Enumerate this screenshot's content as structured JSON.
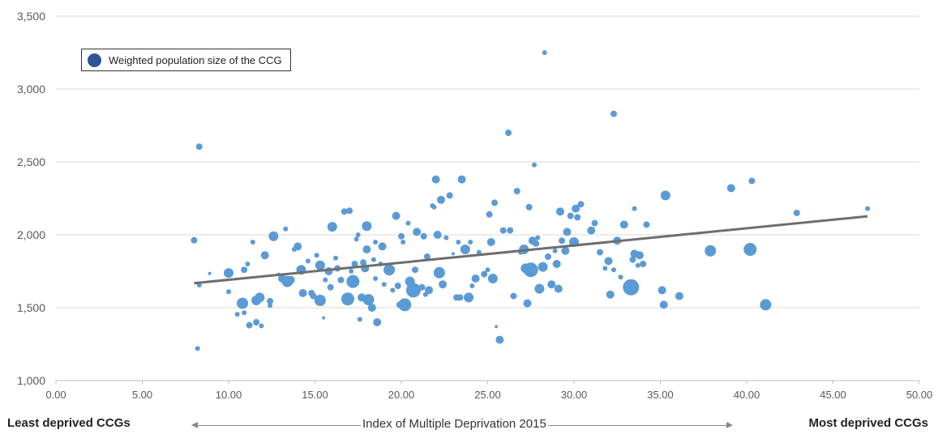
{
  "chart_data": {
    "type": "scatter",
    "title": "",
    "xlabel": "Index of Multiple Deprivation 2015",
    "ylabel": "",
    "xlim": [
      0,
      50
    ],
    "ylim": [
      1000,
      3500
    ],
    "x_ticks": [
      "0.00",
      "5.00",
      "10.00",
      "15.00",
      "20.00",
      "25.00",
      "30.00",
      "35.00",
      "40.00",
      "45.00",
      "50.00"
    ],
    "y_ticks": [
      "1,000",
      "1,500",
      "2,000",
      "2,500",
      "3,000",
      "3,500"
    ],
    "grid": "horizontal",
    "legend": {
      "label": "Weighted population size of the CCG",
      "placement": "top-left"
    },
    "left_annotation": "Least deprived CCGs",
    "right_annotation": "Most deprived CCGs",
    "colors": {
      "points": "#5b9bd5",
      "legend_marker": "#2f5597",
      "trend": "#6e6e6e",
      "grid": "#d9d9d9"
    },
    "trendline": {
      "x": [
        8.0,
        47.0
      ],
      "y": [
        1668,
        2127
      ]
    },
    "series": [
      {
        "points": [
          [
            8.0,
            1963,
            4
          ],
          [
            8.3,
            2605,
            4
          ],
          [
            8.2,
            1220,
            3
          ],
          [
            8.3,
            1655,
            3
          ],
          [
            8.9,
            1735,
            2
          ],
          [
            10.0,
            1738,
            6
          ],
          [
            10.0,
            1610,
            3
          ],
          [
            10.5,
            1455,
            3
          ],
          [
            10.8,
            1530,
            7
          ],
          [
            10.9,
            1465,
            3
          ],
          [
            11.1,
            1800,
            3
          ],
          [
            10.9,
            1760,
            4
          ],
          [
            11.2,
            1380,
            4
          ],
          [
            11.4,
            1950,
            3
          ],
          [
            11.6,
            1400,
            4
          ],
          [
            11.6,
            1550,
            6
          ],
          [
            11.8,
            1570,
            6
          ],
          [
            11.9,
            1375,
            3
          ],
          [
            12.1,
            1860,
            5
          ],
          [
            12.4,
            1515,
            3
          ],
          [
            12.4,
            1545,
            4
          ],
          [
            12.6,
            1990,
            6
          ],
          [
            12.9,
            1730,
            2
          ],
          [
            13.1,
            1700,
            5
          ],
          [
            13.3,
            2040,
            3
          ],
          [
            13.4,
            1680,
            7
          ],
          [
            13.6,
            1690,
            5
          ],
          [
            13.8,
            1900,
            3
          ],
          [
            14.0,
            1920,
            5
          ],
          [
            14.3,
            1600,
            5
          ],
          [
            14.2,
            1760,
            6
          ],
          [
            14.6,
            1820,
            3
          ],
          [
            14.8,
            1600,
            4
          ],
          [
            14.9,
            1580,
            4
          ],
          [
            15.1,
            1860,
            3
          ],
          [
            15.3,
            1790,
            6
          ],
          [
            15.3,
            1550,
            7
          ],
          [
            15.5,
            1430,
            2
          ],
          [
            15.6,
            1690,
            3
          ],
          [
            15.8,
            1750,
            5
          ],
          [
            15.9,
            1640,
            4
          ],
          [
            16.0,
            2055,
            6
          ],
          [
            16.2,
            1840,
            3
          ],
          [
            16.3,
            1770,
            4
          ],
          [
            16.5,
            1690,
            4
          ],
          [
            16.7,
            2160,
            4
          ],
          [
            16.9,
            1560,
            8
          ],
          [
            17.0,
            2165,
            4
          ],
          [
            17.1,
            1750,
            3
          ],
          [
            17.2,
            1680,
            8
          ],
          [
            17.3,
            1800,
            4
          ],
          [
            17.4,
            1970,
            3
          ],
          [
            17.5,
            2000,
            3
          ],
          [
            17.6,
            1420,
            3
          ],
          [
            17.7,
            1570,
            5
          ],
          [
            17.8,
            1810,
            4
          ],
          [
            17.9,
            1770,
            5
          ],
          [
            18.0,
            2060,
            6
          ],
          [
            18.0,
            1900,
            5
          ],
          [
            18.1,
            1555,
            7
          ],
          [
            18.3,
            1500,
            5
          ],
          [
            18.4,
            1830,
            3
          ],
          [
            18.5,
            1700,
            3
          ],
          [
            18.5,
            1950,
            3
          ],
          [
            18.6,
            1400,
            5
          ],
          [
            18.8,
            1800,
            3
          ],
          [
            18.9,
            1920,
            5
          ],
          [
            19.0,
            1660,
            3
          ],
          [
            19.3,
            1760,
            7
          ],
          [
            19.5,
            1620,
            3
          ],
          [
            19.7,
            2130,
            5
          ],
          [
            19.8,
            1650,
            4
          ],
          [
            19.9,
            1520,
            4
          ],
          [
            20.0,
            1990,
            4
          ],
          [
            20.1,
            1950,
            3
          ],
          [
            20.2,
            1520,
            8
          ],
          [
            20.4,
            2080,
            3
          ],
          [
            20.5,
            1680,
            6
          ],
          [
            20.7,
            1620,
            9
          ],
          [
            20.8,
            1760,
            4
          ],
          [
            20.9,
            2020,
            5
          ],
          [
            21.2,
            1640,
            4
          ],
          [
            21.3,
            1990,
            4
          ],
          [
            21.4,
            1590,
            3
          ],
          [
            21.5,
            1850,
            4
          ],
          [
            21.6,
            1620,
            5
          ],
          [
            21.8,
            2200,
            3
          ],
          [
            21.9,
            2190,
            3
          ],
          [
            22.0,
            2380,
            5
          ],
          [
            22.1,
            2000,
            5
          ],
          [
            22.2,
            1740,
            7
          ],
          [
            22.3,
            2240,
            5
          ],
          [
            22.4,
            1660,
            5
          ],
          [
            22.6,
            1980,
            3
          ],
          [
            22.8,
            2270,
            4
          ],
          [
            23.0,
            1870,
            2
          ],
          [
            23.2,
            1570,
            4
          ],
          [
            23.3,
            1950,
            3
          ],
          [
            23.4,
            1570,
            4
          ],
          [
            23.5,
            2380,
            5
          ],
          [
            23.7,
            1900,
            6
          ],
          [
            23.9,
            1570,
            6
          ],
          [
            24.0,
            1950,
            3
          ],
          [
            24.1,
            1650,
            3
          ],
          [
            24.3,
            1700,
            5
          ],
          [
            24.5,
            1880,
            3
          ],
          [
            24.8,
            1730,
            4
          ],
          [
            25.0,
            1760,
            3
          ],
          [
            25.1,
            2140,
            4
          ],
          [
            25.2,
            1950,
            5
          ],
          [
            25.3,
            1700,
            6
          ],
          [
            25.4,
            2220,
            4
          ],
          [
            25.5,
            1370,
            2
          ],
          [
            25.7,
            1280,
            5
          ],
          [
            25.9,
            2030,
            4
          ],
          [
            26.2,
            2700,
            4
          ],
          [
            26.3,
            2030,
            4
          ],
          [
            26.5,
            1580,
            4
          ],
          [
            26.7,
            2300,
            4
          ],
          [
            26.9,
            1880,
            3
          ],
          [
            27.1,
            1900,
            6
          ],
          [
            27.2,
            1770,
            6
          ],
          [
            27.3,
            1530,
            5
          ],
          [
            27.4,
            2190,
            4
          ],
          [
            27.5,
            1760,
            9
          ],
          [
            27.6,
            1960,
            5
          ],
          [
            27.7,
            2480,
            3
          ],
          [
            27.8,
            1940,
            4
          ],
          [
            27.9,
            1980,
            3
          ],
          [
            28.0,
            1630,
            6
          ],
          [
            28.2,
            1780,
            6
          ],
          [
            28.3,
            3250,
            3
          ],
          [
            28.5,
            1850,
            4
          ],
          [
            28.7,
            1660,
            5
          ],
          [
            28.9,
            1890,
            3
          ],
          [
            29.0,
            1800,
            5
          ],
          [
            29.1,
            1630,
            5
          ],
          [
            29.2,
            2160,
            5
          ],
          [
            29.3,
            1960,
            4
          ],
          [
            29.5,
            1890,
            5
          ],
          [
            29.6,
            2020,
            5
          ],
          [
            29.8,
            2130,
            4
          ],
          [
            30.0,
            1950,
            6
          ],
          [
            30.1,
            2180,
            5
          ],
          [
            30.2,
            2120,
            4
          ],
          [
            30.4,
            2210,
            4
          ],
          [
            31.0,
            2030,
            5
          ],
          [
            31.2,
            2080,
            4
          ],
          [
            31.5,
            1880,
            4
          ],
          [
            31.8,
            1770,
            3
          ],
          [
            32.0,
            1820,
            5
          ],
          [
            32.1,
            1590,
            5
          ],
          [
            32.3,
            1760,
            3
          ],
          [
            32.3,
            2830,
            4
          ],
          [
            32.5,
            1960,
            5
          ],
          [
            32.7,
            1710,
            3
          ],
          [
            32.9,
            2070,
            5
          ],
          [
            33.3,
            1640,
            10
          ],
          [
            33.4,
            1830,
            4
          ],
          [
            33.5,
            1870,
            5
          ],
          [
            33.5,
            2180,
            3
          ],
          [
            33.7,
            1790,
            3
          ],
          [
            33.8,
            1860,
            5
          ],
          [
            34.0,
            1800,
            4
          ],
          [
            34.2,
            2070,
            4
          ],
          [
            35.1,
            1620,
            5
          ],
          [
            35.2,
            1520,
            5
          ],
          [
            35.3,
            2270,
            6
          ],
          [
            36.1,
            1580,
            5
          ],
          [
            37.9,
            1890,
            7
          ],
          [
            39.1,
            2320,
            5
          ],
          [
            40.2,
            1900,
            8
          ],
          [
            40.3,
            2370,
            4
          ],
          [
            41.1,
            1520,
            7
          ],
          [
            42.9,
            2150,
            4
          ],
          [
            47.0,
            2180,
            3
          ]
        ]
      }
    ]
  }
}
